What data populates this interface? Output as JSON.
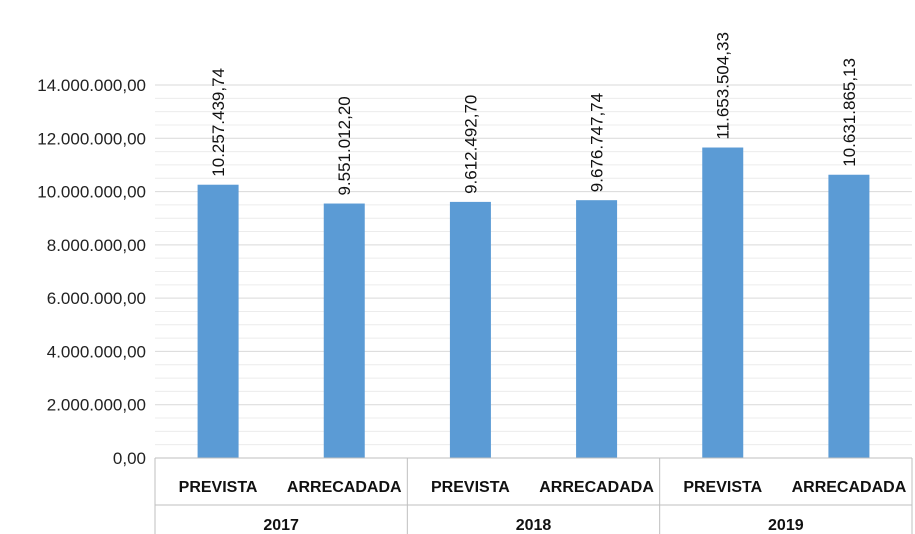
{
  "chart_data": {
    "type": "bar",
    "groups": [
      "2017",
      "2018",
      "2019"
    ],
    "categories": [
      "PREVISTA",
      "ARRECADADA",
      "PREVISTA",
      "ARRECADADA",
      "PREVISTA",
      "ARRECADADA"
    ],
    "values": [
      10257439.74,
      9551012.2,
      9612492.7,
      9676747.74,
      11653504.33,
      10631865.13
    ],
    "data_labels": [
      "10.257.439,74",
      "9.551.012,20",
      "9.612.492,70",
      "9.676.747,74",
      "11.653.504,33",
      "10.631.865,13"
    ],
    "y_ticks": [
      0,
      2000000,
      4000000,
      6000000,
      8000000,
      10000000,
      12000000,
      14000000
    ],
    "y_tick_labels": [
      "0,00",
      "2.000.000,00",
      "4.000.000,00",
      "6.000.000,00",
      "8.000.000,00",
      "10.000.000,00",
      "12.000.000,00",
      "14.000.000,00"
    ],
    "ylim": [
      0,
      14000000
    ],
    "grid": true,
    "legend": "none",
    "bar_color": "#5b9bd5",
    "grid_color": "#d9d9d9"
  }
}
